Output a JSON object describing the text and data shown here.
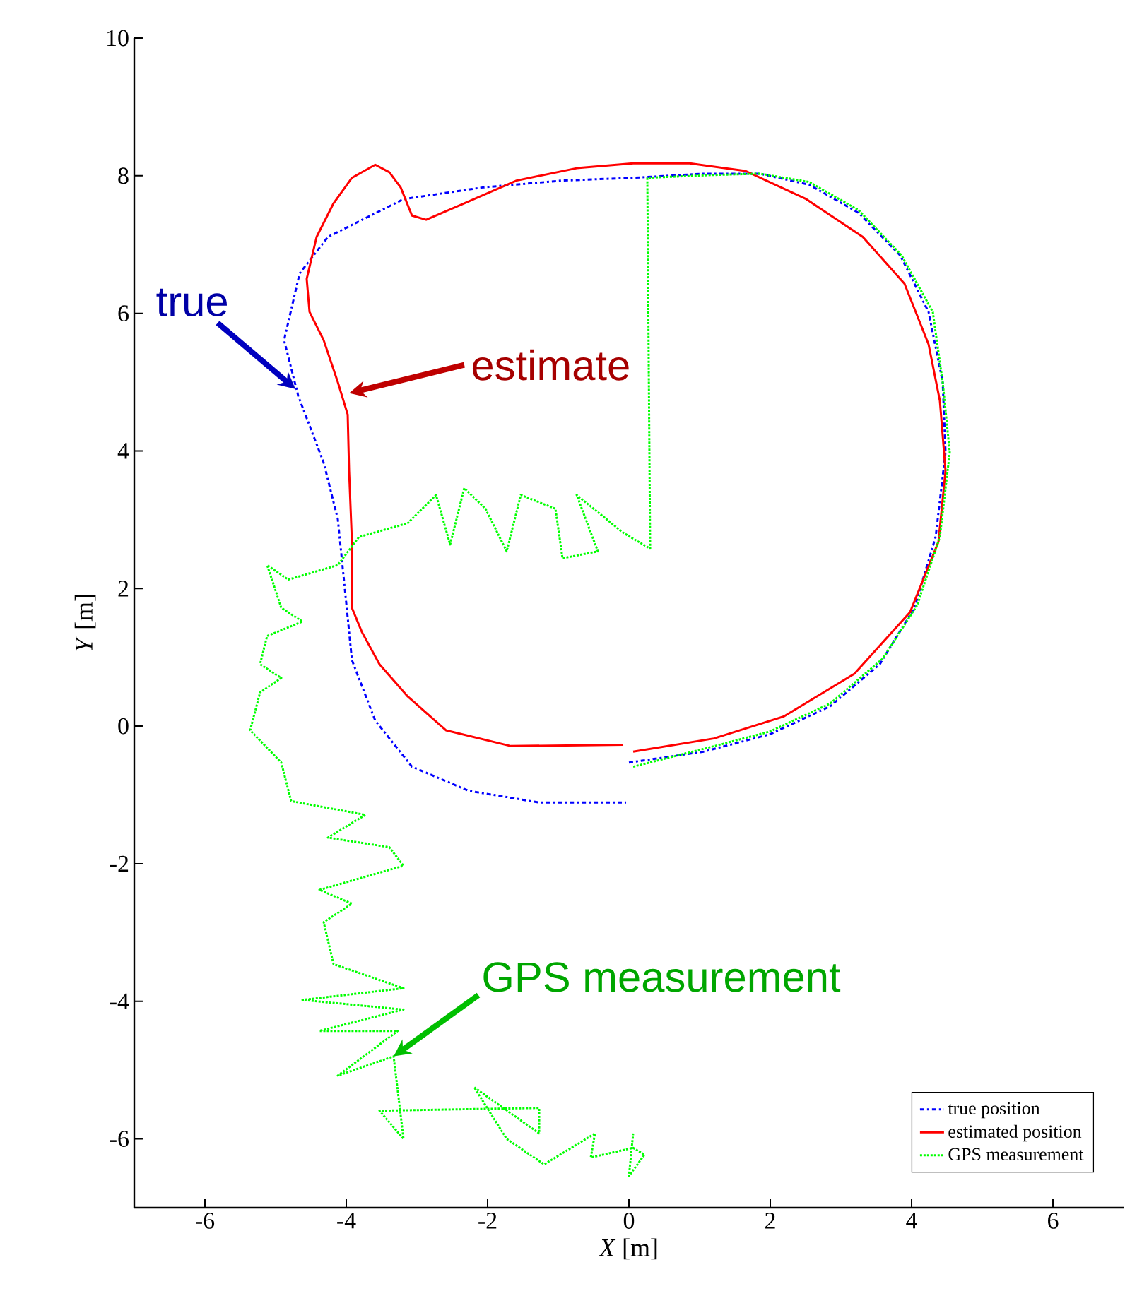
{
  "chart_data": {
    "type": "line",
    "xlabel": "*X* [m]",
    "ylabel": "*Y* [m]",
    "xlim": [
      -7,
      7
    ],
    "ylim": [
      -7,
      10
    ],
    "xticks": [
      -6,
      -4,
      -2,
      0,
      2,
      4,
      6
    ],
    "yticks": [
      -6,
      -4,
      -2,
      0,
      2,
      4,
      6,
      8,
      10
    ],
    "grid": false,
    "legend": "bottom right",
    "marker": "none",
    "series": [
      {
        "name": "true position",
        "color": "#0000ff",
        "line_style": "dashdot",
        "x": [
          0,
          1.06,
          1.99,
          2.85,
          3.55,
          4.04,
          4.34,
          4.48,
          4.44,
          4.24,
          3.84,
          3.25,
          2.55,
          1.85,
          1.06,
          0.06,
          -0.94,
          -2.07,
          -3.19,
          -4.26,
          -4.66,
          -4.88,
          -4.68,
          -4.32,
          -4.12,
          -4.02,
          -3.92,
          -3.59,
          -3.07,
          -2.27,
          -1.27,
          -0.04
        ],
        "values": [
          -0.53,
          -0.37,
          -0.12,
          0.29,
          0.9,
          1.72,
          2.75,
          3.98,
          5.0,
          6.02,
          6.84,
          7.46,
          7.87,
          8.03,
          8.03,
          7.97,
          7.93,
          7.83,
          7.66,
          7.11,
          6.58,
          5.61,
          4.8,
          3.83,
          3.01,
          1.99,
          0.96,
          0.08,
          -0.59,
          -0.94,
          -1.11,
          -1.11
        ]
      },
      {
        "name": "estimated position",
        "color": "#ff0000",
        "line_style": "solid",
        "x": [
          0.06,
          1.2,
          2.19,
          3.19,
          3.98,
          4.38,
          4.48,
          4.4,
          4.24,
          3.9,
          3.31,
          2.51,
          1.65,
          0.86,
          0.06,
          -0.74,
          -1.59,
          -2.33,
          -2.87,
          -3.07,
          -3.23,
          -3.39,
          -3.59,
          -3.92,
          -4.18,
          -4.42,
          -4.56,
          -4.52,
          -4.32,
          -4.12,
          -3.98,
          -3.96,
          -3.92,
          -3.92,
          -3.78,
          -3.53,
          -3.13,
          -2.59,
          -1.67,
          -0.08
        ],
        "values": [
          -0.37,
          -0.18,
          0.14,
          0.76,
          1.66,
          2.68,
          3.71,
          4.73,
          5.55,
          6.43,
          7.11,
          7.66,
          8.07,
          8.18,
          8.18,
          8.11,
          7.93,
          7.6,
          7.36,
          7.42,
          7.83,
          8.05,
          8.16,
          7.97,
          7.6,
          7.11,
          6.5,
          6.02,
          5.61,
          5.0,
          4.53,
          3.71,
          2.68,
          1.72,
          1.37,
          0.9,
          0.43,
          -0.06,
          -0.29,
          -0.27
        ]
      },
      {
        "name": "GPS measurement",
        "color": "#00ff00",
        "line_style": "dotted",
        "x": [
          0.06,
          1.06,
          1.99,
          2.85,
          3.59,
          4.08,
          4.4,
          4.54,
          4.44,
          4.3,
          3.86,
          3.25,
          2.55,
          1.85,
          1.16,
          0.26,
          0.3,
          -0.08,
          -0.74,
          -0.44,
          -0.94,
          -1.04,
          -1.53,
          -1.73,
          -2.03,
          -2.33,
          -2.53,
          -2.73,
          -3.13,
          -3.82,
          -4.12,
          -4.82,
          -5.12,
          -4.92,
          -4.62,
          -5.12,
          -5.22,
          -4.92,
          -5.22,
          -5.36,
          -4.92,
          -4.78,
          -3.73,
          -4.26,
          -3.39,
          -3.19,
          -4.38,
          -3.92,
          -4.32,
          -4.18,
          -3.19,
          -4.62,
          -3.19,
          -4.38,
          -3.27,
          -4.12,
          -3.33,
          -3.19,
          -3.53,
          -1.27,
          -1.27,
          -2.19,
          -1.73,
          -1.2,
          -0.48,
          -0.54,
          0.06,
          0.22,
          0.0,
          0.06
        ],
        "values": [
          -0.59,
          -0.33,
          -0.08,
          0.33,
          0.98,
          1.76,
          2.75,
          3.98,
          5.0,
          6.02,
          6.84,
          7.5,
          7.91,
          8.03,
          8.01,
          7.97,
          2.58,
          2.81,
          3.36,
          2.54,
          2.44,
          3.16,
          3.36,
          2.54,
          3.16,
          3.46,
          2.64,
          3.36,
          2.95,
          2.75,
          2.34,
          2.13,
          2.34,
          1.72,
          1.52,
          1.31,
          0.9,
          0.7,
          0.49,
          -0.06,
          -0.53,
          -1.09,
          -1.29,
          -1.62,
          -1.76,
          -2.03,
          -2.38,
          -2.58,
          -2.85,
          -3.46,
          -3.81,
          -3.98,
          -4.12,
          -4.43,
          -4.43,
          -5.08,
          -4.8,
          -6.0,
          -5.59,
          -5.55,
          -5.92,
          -5.25,
          -6.0,
          -6.37,
          -5.92,
          -6.27,
          -6.13,
          -6.23,
          -6.54,
          -5.92
        ]
      }
    ],
    "annotations": [
      {
        "text": "true",
        "x": -4.72,
        "y": 4.9
      },
      {
        "text": "estimate",
        "x": -3.96,
        "y": 4.84
      },
      {
        "text": "GPS measurement",
        "x": -3.33,
        "y": -4.8
      }
    ]
  }
}
